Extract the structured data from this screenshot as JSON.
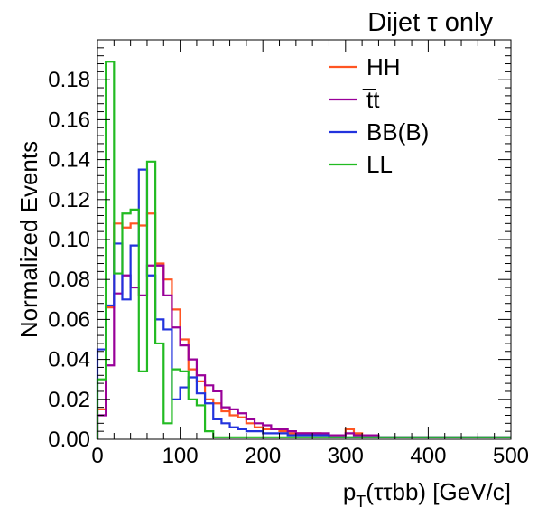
{
  "chart_data": {
    "type": "line",
    "title": "Dijet τ only",
    "xlabel_main": "p",
    "xlabel_sub": "T",
    "xlabel_rest": "(ττbb) [GeV/c]",
    "ylabel": "Normalized Events",
    "xlim": [
      0,
      500
    ],
    "ylim": [
      0,
      0.2
    ],
    "x_ticks": [
      "0",
      "100",
      "200",
      "300",
      "400",
      "500"
    ],
    "y_ticks": [
      "0.00",
      "0.02",
      "0.04",
      "0.06",
      "0.08",
      "0.10",
      "0.12",
      "0.14",
      "0.16",
      "0.18"
    ],
    "grid": false,
    "legend_position": "top-right",
    "bin_width": 10,
    "series": [
      {
        "name": "HH",
        "color": "#ff5522",
        "values": [
          0.015,
          0.066,
          0.108,
          0.106,
          0.108,
          0.107,
          0.113,
          0.088,
          0.08,
          0.065,
          0.05,
          0.035,
          0.029,
          0.02,
          0.018,
          0.014,
          0.012,
          0.011,
          0.008,
          0.006,
          0.005,
          0.005,
          0.004,
          0.003,
          0.003,
          0.003,
          0.003,
          0.002,
          0.002,
          0.002,
          0.005,
          0.003,
          0.002,
          0.002,
          0.001,
          0.001,
          0.001,
          0.001,
          0.001,
          0.001,
          0.001,
          0.001,
          0.001,
          0.001,
          0.001,
          0.001,
          0.001,
          0.001,
          0.001,
          0.001
        ]
      },
      {
        "name": "t̅t",
        "color": "#990099",
        "values": [
          0.012,
          0.037,
          0.073,
          0.082,
          0.076,
          0.072,
          0.087,
          0.087,
          0.072,
          0.056,
          0.047,
          0.04,
          0.032,
          0.027,
          0.024,
          0.016,
          0.015,
          0.013,
          0.01,
          0.008,
          0.007,
          0.005,
          0.005,
          0.004,
          0.003,
          0.003,
          0.003,
          0.003,
          0.002,
          0.002,
          0.003,
          0.002,
          0.002,
          0.002,
          0.001,
          0.001,
          0.001,
          0.001,
          0.001,
          0.001,
          0.001,
          0.001,
          0.001,
          0.001,
          0.001,
          0.001,
          0.001,
          0.001,
          0.001,
          0.001
        ]
      },
      {
        "name": "BB(B)",
        "color": "#2233dd",
        "values": [
          0.045,
          0.067,
          0.098,
          0.07,
          0.097,
          0.135,
          0.082,
          0.06,
          0.055,
          0.02,
          0.026,
          0.031,
          0.023,
          0.018,
          0.01,
          0.008,
          0.006,
          0.005,
          0.004,
          0.004,
          0.003,
          0.003,
          0.003,
          0.002,
          0.002,
          0.002,
          0.002,
          0.002,
          0.001,
          0.001,
          0.001,
          0.001,
          0.001,
          0.001,
          0.001,
          0.001,
          0.001,
          0.001,
          0.001,
          0.001,
          0.001,
          0.001,
          0.001,
          0.001,
          0.001,
          0.001,
          0.001,
          0.001,
          0.001,
          0.001
        ]
      },
      {
        "name": "LL",
        "color": "#22bb22",
        "values": [
          0.03,
          0.189,
          0.083,
          0.113,
          0.115,
          0.034,
          0.139,
          0.048,
          0.008,
          0.035,
          0.034,
          0.02,
          0.017,
          0.004,
          0.001,
          0.001,
          0.001,
          0.001,
          0.001,
          0.001,
          0.001,
          0.001,
          0.001,
          0.001,
          0.001,
          0.001,
          0.001,
          0.001,
          0.001,
          0.001,
          0.001,
          0.001,
          0.001,
          0.001,
          0.001,
          0.001,
          0.001,
          0.001,
          0.001,
          0.001,
          0.001,
          0.001,
          0.001,
          0.001,
          0.001,
          0.001,
          0.001,
          0.001,
          0.001,
          0.001
        ]
      }
    ]
  }
}
